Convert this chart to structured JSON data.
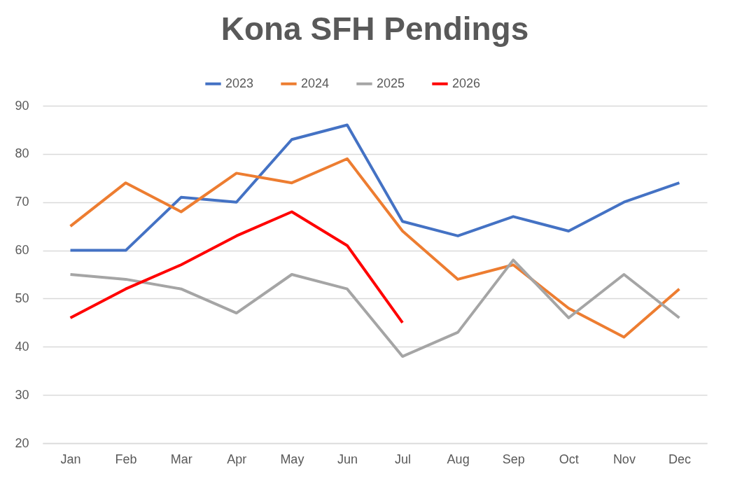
{
  "chart_data": {
    "type": "line",
    "title": "Kona SFH Pendings",
    "categories": [
      "Jan",
      "Feb",
      "Mar",
      "Apr",
      "May",
      "Jun",
      "Jul",
      "Aug",
      "Sep",
      "Oct",
      "Nov",
      "Dec"
    ],
    "series": [
      {
        "name": "2023",
        "color": "#4472c4",
        "values": [
          60,
          60,
          71,
          70,
          83,
          86,
          66,
          63,
          67,
          64,
          70,
          74
        ]
      },
      {
        "name": "2024",
        "color": "#ed7d31",
        "values": [
          65,
          74,
          68,
          76,
          74,
          79,
          64,
          54,
          57,
          48,
          42,
          52
        ]
      },
      {
        "name": "2025",
        "color": "#a5a5a5",
        "values": [
          55,
          54,
          52,
          47,
          55,
          52,
          38,
          43,
          58,
          46,
          55,
          46
        ]
      },
      {
        "name": "2026",
        "color": "#ff0000",
        "values": [
          46,
          52,
          57,
          63,
          68,
          61,
          45,
          null,
          null,
          null,
          null,
          null
        ]
      }
    ],
    "ylim": [
      20,
      90
    ],
    "yticks": [
      20,
      30,
      40,
      50,
      60,
      70,
      80,
      90
    ],
    "grid": "y",
    "legend": "top",
    "marker": "none",
    "line_style": "solid"
  }
}
